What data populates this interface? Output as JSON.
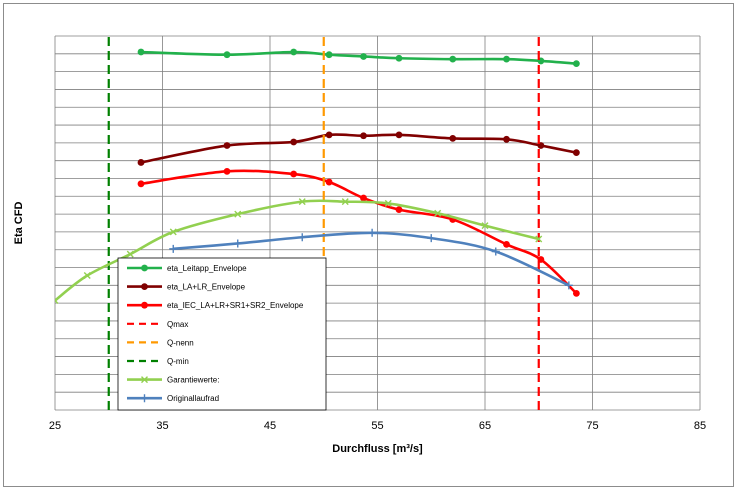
{
  "chart_data": {
    "type": "line",
    "title": "",
    "xlabel": "Durchfluss [m³/s]",
    "ylabel": "Eta CFD",
    "xlim": [
      25,
      85
    ],
    "ylim": [
      0,
      21
    ],
    "x_ticks": [
      "25",
      "35",
      "45",
      "55",
      "65",
      "75",
      "85"
    ],
    "y_tick_labels_shown": false,
    "grid": true,
    "legend_position": "lower-left inside plot",
    "series": [
      {
        "name": "eta_Leitapp_Envelope",
        "color": "#22b14c",
        "marker": "circle",
        "dash": "solid",
        "x": [
          33,
          41,
          47.2,
          50.5,
          53.7,
          57,
          62,
          67,
          70.2,
          73.5
        ],
        "y": [
          20.1,
          19.95,
          20.1,
          19.95,
          19.85,
          19.75,
          19.7,
          19.7,
          19.6,
          19.45
        ]
      },
      {
        "name": "eta_LA+LR_Envelope",
        "color": "#800000",
        "marker": "circle",
        "dash": "solid",
        "x": [
          33,
          41,
          47.2,
          50.5,
          53.7,
          57,
          62,
          67,
          70.2,
          73.5
        ],
        "y": [
          13.9,
          14.85,
          15.05,
          15.45,
          15.4,
          15.45,
          15.25,
          15.2,
          14.85,
          14.45
        ]
      },
      {
        "name": "eta_IEC_LA+LR+SR1+SR2_Envelope",
        "color": "#ff0000",
        "marker": "circle",
        "dash": "solid",
        "x": [
          33,
          41,
          47.2,
          50.5,
          53.7,
          57,
          62,
          67,
          70.2,
          73.5
        ],
        "y": [
          12.7,
          13.4,
          13.25,
          12.8,
          11.9,
          11.25,
          10.7,
          9.3,
          8.45,
          6.55
        ]
      },
      {
        "name": "Qmax",
        "color": "#ff0000",
        "marker": "none",
        "dash": "dashed",
        "x": [
          70,
          70
        ],
        "y": [
          0,
          21
        ]
      },
      {
        "name": "Q-nenn",
        "color": "#ff9900",
        "marker": "none",
        "dash": "dashed",
        "x": [
          50,
          50
        ],
        "y": [
          0,
          21
        ]
      },
      {
        "name": "Q-min",
        "color": "#008000",
        "marker": "none",
        "dash": "dashed",
        "x": [
          30,
          30
        ],
        "y": [
          0,
          21
        ]
      },
      {
        "name": "Garantiewerte:",
        "color": "#92d050",
        "marker": "x",
        "dash": "solid",
        "x": [
          25,
          28,
          32,
          36,
          42,
          48,
          52,
          56,
          60.6,
          65,
          70
        ],
        "y": [
          6.15,
          7.55,
          8.75,
          10.0,
          11.0,
          11.7,
          11.7,
          11.6,
          11.05,
          10.35,
          9.6
        ]
      },
      {
        "name": "Originallaufrad",
        "color": "#4f81bd",
        "marker": "plus",
        "dash": "solid",
        "x": [
          36,
          42,
          48,
          54.5,
          60,
          66,
          72.8
        ],
        "y": [
          9.05,
          9.35,
          9.7,
          9.95,
          9.65,
          8.9,
          7.0
        ]
      }
    ]
  }
}
